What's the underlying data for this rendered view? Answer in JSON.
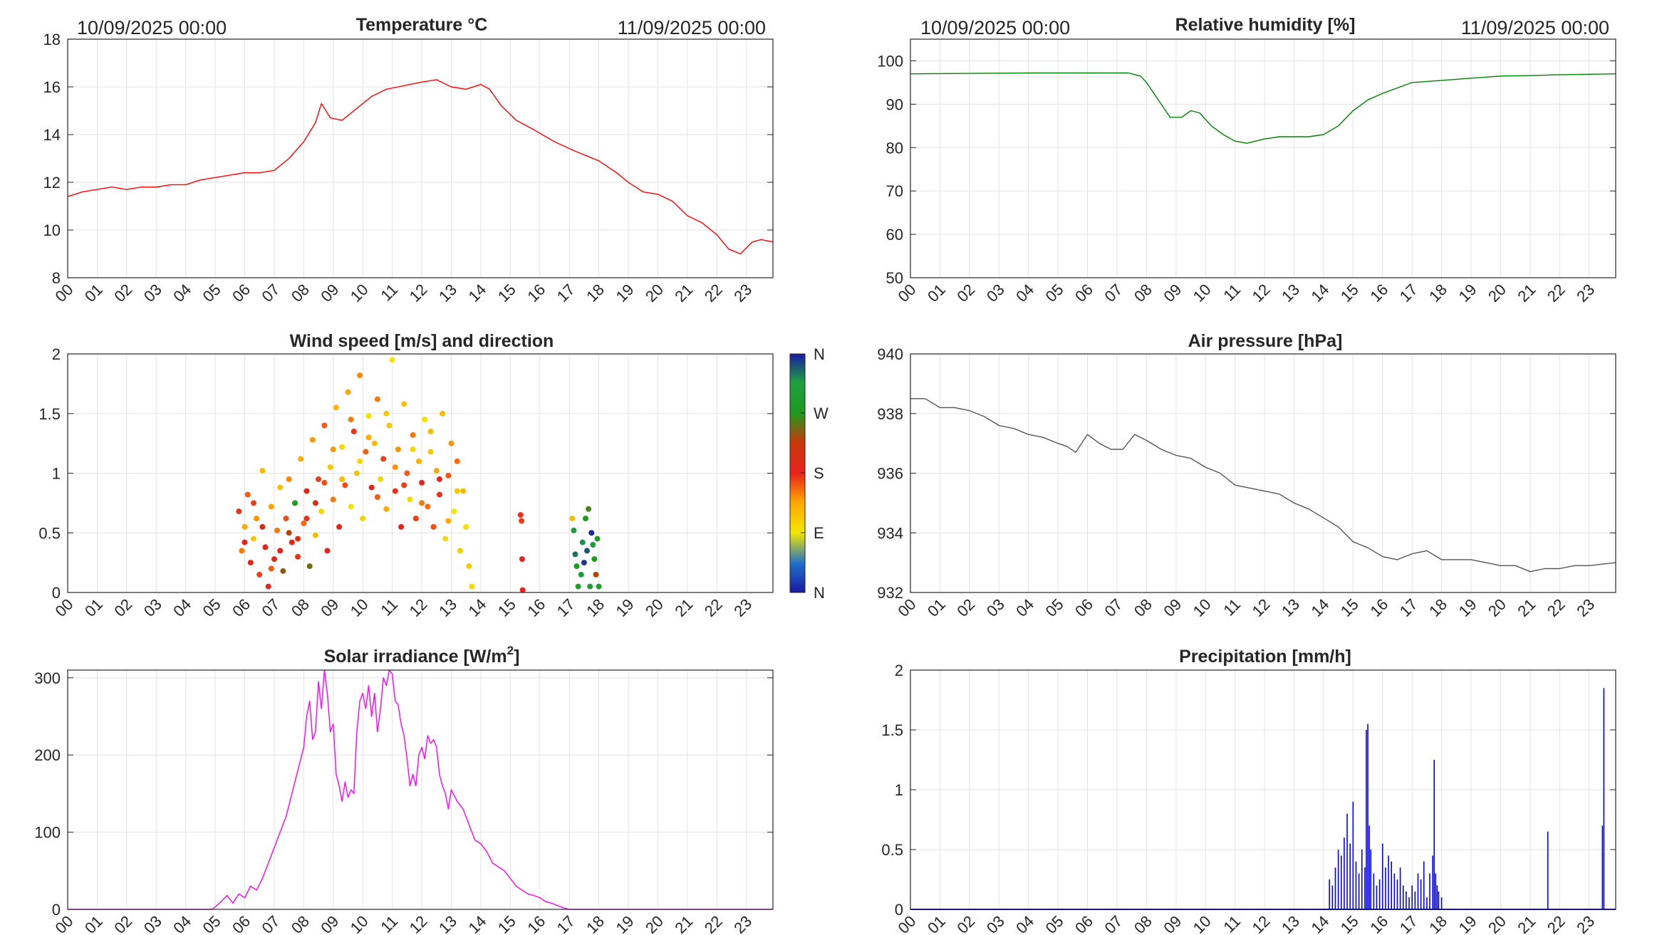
{
  "hour_labels": [
    "00",
    "01",
    "02",
    "03",
    "04",
    "05",
    "06",
    "07",
    "08",
    "09",
    "10",
    "11",
    "12",
    "13",
    "14",
    "15",
    "16",
    "17",
    "18",
    "19",
    "20",
    "21",
    "22",
    "23"
  ],
  "colorbar_labels": [
    "N",
    "W",
    "S",
    "E",
    "N"
  ],
  "chart_data": [
    {
      "id": "temperature",
      "type": "line",
      "title": "Temperature °C",
      "date_start": "10/09/2025 00:00",
      "date_end": "11/09/2025 00:00",
      "color": "#ff0000",
      "ylim": [
        8,
        18
      ],
      "yticks": [
        "8",
        "10",
        "12",
        "14",
        "16",
        "18"
      ],
      "x_hours": [
        0,
        0.5,
        1,
        1.5,
        2,
        2.5,
        3,
        3.5,
        4,
        4.5,
        5,
        5.5,
        6,
        6.5,
        7,
        7.5,
        8,
        8.4,
        8.6,
        8.9,
        9.3,
        9.8,
        10.3,
        10.8,
        11.2,
        11.6,
        12.0,
        12.5,
        13.0,
        13.5,
        14.0,
        14.3,
        14.7,
        15.2,
        15.8,
        16.5,
        17.2,
        18.0,
        18.6,
        19.0,
        19.5,
        20.0,
        20.5,
        21.0,
        21.5,
        22.0,
        22.4,
        22.8,
        23.2,
        23.5,
        23.9
      ],
      "values": [
        11.4,
        11.6,
        11.7,
        11.8,
        11.7,
        11.8,
        11.8,
        11.9,
        11.9,
        12.1,
        12.2,
        12.3,
        12.4,
        12.4,
        12.5,
        13.0,
        13.7,
        14.5,
        15.3,
        14.7,
        14.6,
        15.1,
        15.6,
        15.9,
        16.0,
        16.1,
        16.2,
        16.3,
        16.0,
        15.9,
        16.1,
        15.9,
        15.2,
        14.6,
        14.2,
        13.7,
        13.3,
        12.9,
        12.4,
        12.0,
        11.6,
        11.5,
        11.2,
        10.6,
        10.3,
        9.8,
        9.2,
        9.0,
        9.5,
        9.6,
        9.5
      ]
    },
    {
      "id": "humidity",
      "type": "line",
      "title": "Relative humidity [%]",
      "date_start": "10/09/2025 00:00",
      "date_end": "11/09/2025 00:00",
      "color": "#008000",
      "ylim": [
        50,
        105
      ],
      "yticks": [
        "50",
        "60",
        "70",
        "80",
        "90",
        "100"
      ],
      "x_hours": [
        0,
        2,
        4,
        6,
        7.4,
        7.8,
        8.0,
        8.3,
        8.5,
        8.8,
        9.2,
        9.5,
        9.8,
        10.2,
        10.6,
        11.0,
        11.4,
        12.0,
        12.5,
        13.0,
        13.5,
        14.0,
        14.5,
        15.0,
        15.5,
        16.0,
        17.0,
        18.0,
        19.0,
        20.0,
        21.0,
        22.0,
        23.0,
        23.9
      ],
      "values": [
        97,
        97.1,
        97.2,
        97.2,
        97.2,
        96.5,
        95,
        92,
        90,
        87,
        87,
        88.5,
        88,
        85,
        83,
        81.5,
        81,
        82,
        82.5,
        82.5,
        82.5,
        83,
        85,
        88.5,
        91,
        92.5,
        95,
        95.5,
        96,
        96.5,
        96.6,
        96.8,
        96.9,
        97
      ]
    },
    {
      "id": "wind",
      "type": "scatter",
      "title": "Wind speed [m/s] and direction",
      "ylim": [
        0,
        2
      ],
      "yticks": [
        "0",
        "0.5",
        "1",
        "1.5",
        "2"
      ],
      "colorbar_scale": "direction (N, E, S, W, N)",
      "points": [
        [
          5.8,
          0.68,
          175
        ],
        [
          5.9,
          0.35,
          150
        ],
        [
          6.0,
          0.55,
          130
        ],
        [
          6.1,
          0.82,
          160
        ],
        [
          6.2,
          0.25,
          185
        ],
        [
          6.3,
          0.45,
          110
        ],
        [
          6.4,
          0.62,
          140
        ],
        [
          6.5,
          0.15,
          170
        ],
        [
          6.6,
          1.02,
          120
        ],
        [
          6.7,
          0.38,
          190
        ],
        [
          6.8,
          0.05,
          180
        ],
        [
          6.9,
          0.72,
          135
        ],
        [
          7.0,
          0.28,
          200
        ],
        [
          7.1,
          0.52,
          150
        ],
        [
          7.2,
          0.88,
          115
        ],
        [
          7.3,
          0.18,
          240
        ],
        [
          7.4,
          0.62,
          165
        ],
        [
          7.5,
          0.95,
          145
        ],
        [
          7.6,
          0.42,
          195
        ],
        [
          7.7,
          0.75,
          270
        ],
        [
          7.8,
          0.3,
          175
        ],
        [
          7.9,
          1.12,
          130
        ],
        [
          8.0,
          0.58,
          155
        ],
        [
          8.1,
          0.85,
          185
        ],
        [
          8.2,
          0.22,
          250
        ],
        [
          8.3,
          1.28,
          140
        ],
        [
          8.4,
          0.48,
          120
        ],
        [
          8.5,
          0.95,
          170
        ],
        [
          8.6,
          0.68,
          100
        ],
        [
          8.7,
          1.4,
          160
        ],
        [
          8.8,
          0.35,
          180
        ],
        [
          8.9,
          1.05,
          110
        ],
        [
          9.0,
          0.78,
          150
        ],
        [
          9.1,
          1.55,
          125
        ],
        [
          9.2,
          0.55,
          190
        ],
        [
          9.3,
          1.22,
          100
        ],
        [
          9.4,
          0.9,
          165
        ],
        [
          9.5,
          1.68,
          135
        ],
        [
          9.6,
          0.72,
          90
        ],
        [
          9.7,
          1.35,
          175
        ],
        [
          9.8,
          1.0,
          115
        ],
        [
          9.9,
          1.82,
          145
        ],
        [
          10.0,
          0.62,
          105
        ],
        [
          10.1,
          1.18,
          160
        ],
        [
          10.2,
          1.48,
          95
        ],
        [
          10.3,
          0.88,
          180
        ],
        [
          10.4,
          1.25,
          120
        ],
        [
          10.5,
          1.62,
          150
        ],
        [
          10.6,
          0.95,
          100
        ],
        [
          10.7,
          1.12,
          170
        ],
        [
          10.8,
          0.7,
          130
        ],
        [
          10.9,
          1.4,
          110
        ],
        [
          11.0,
          1.95,
          90
        ],
        [
          11.1,
          0.85,
          175
        ],
        [
          11.2,
          1.2,
          140
        ],
        [
          11.3,
          0.55,
          185
        ],
        [
          11.4,
          1.58,
          115
        ],
        [
          11.5,
          1.0,
          160
        ],
        [
          11.6,
          0.78,
          100
        ],
        [
          11.7,
          1.32,
          150
        ],
        [
          11.8,
          0.62,
          170
        ],
        [
          11.9,
          1.1,
          125
        ],
        [
          12.0,
          0.92,
          180
        ],
        [
          12.1,
          1.45,
          95
        ],
        [
          12.2,
          0.72,
          155
        ],
        [
          12.3,
          1.18,
          110
        ],
        [
          12.4,
          0.55,
          165
        ],
        [
          12.5,
          1.02,
          135
        ],
        [
          12.6,
          0.82,
          175
        ],
        [
          12.7,
          1.5,
          120
        ],
        [
          12.8,
          0.45,
          100
        ],
        [
          12.9,
          0.98,
          160
        ],
        [
          13.0,
          1.25,
          140
        ],
        [
          13.1,
          0.68,
          90
        ],
        [
          13.2,
          1.1,
          155
        ],
        [
          13.3,
          0.35,
          105
        ],
        [
          13.4,
          0.85,
          120
        ],
        [
          13.5,
          0.55,
          95
        ],
        [
          13.6,
          0.22,
          110
        ],
        [
          13.7,
          0.05,
          100
        ],
        [
          6.0,
          0.42,
          180
        ],
        [
          6.3,
          0.75,
          170
        ],
        [
          6.6,
          0.55,
          200
        ],
        [
          6.9,
          0.2,
          160
        ],
        [
          7.2,
          0.35,
          185
        ],
        [
          7.5,
          0.5,
          230
        ],
        [
          7.8,
          0.45,
          200
        ],
        [
          8.1,
          0.62,
          175
        ],
        [
          8.4,
          0.75,
          210
        ],
        [
          8.7,
          0.92,
          165
        ],
        [
          9.0,
          1.2,
          140
        ],
        [
          9.3,
          0.95,
          120
        ],
        [
          9.6,
          1.45,
          150
        ],
        [
          9.9,
          1.1,
          100
        ],
        [
          10.2,
          1.3,
          130
        ],
        [
          10.5,
          0.8,
          160
        ],
        [
          10.8,
          1.5,
          110
        ],
        [
          11.1,
          1.05,
          140
        ],
        [
          11.4,
          0.9,
          170
        ],
        [
          11.7,
          1.2,
          100
        ],
        [
          12.0,
          0.75,
          150
        ],
        [
          12.3,
          1.35,
          120
        ],
        [
          12.6,
          0.95,
          180
        ],
        [
          12.9,
          0.6,
          130
        ],
        [
          13.2,
          0.85,
          110
        ],
        [
          15.35,
          0.65,
          175
        ],
        [
          15.38,
          0.6,
          170
        ],
        [
          15.4,
          0.28,
          185
        ],
        [
          15.42,
          0.02,
          180
        ],
        [
          17.1,
          0.62,
          120
        ],
        [
          17.15,
          0.52,
          310
        ],
        [
          17.2,
          0.32,
          330
        ],
        [
          17.25,
          0.22,
          280
        ],
        [
          17.3,
          0.05,
          290
        ],
        [
          17.4,
          0.15,
          300
        ],
        [
          17.45,
          0.42,
          320
        ],
        [
          17.5,
          0.25,
          350
        ],
        [
          17.55,
          0.62,
          270
        ],
        [
          17.6,
          0.35,
          340
        ],
        [
          17.65,
          0.7,
          260
        ],
        [
          17.7,
          0.05,
          300
        ],
        [
          17.75,
          0.5,
          355
        ],
        [
          17.8,
          0.4,
          310
        ],
        [
          17.85,
          0.28,
          270
        ],
        [
          17.9,
          0.15,
          230
        ],
        [
          17.95,
          0.45,
          280
        ],
        [
          18.0,
          0.05,
          290
        ]
      ]
    },
    {
      "id": "pressure",
      "type": "line",
      "title": "Air pressure [hPa]",
      "color": "#555555",
      "ylim": [
        932,
        940
      ],
      "yticks": [
        "932",
        "934",
        "936",
        "938",
        "940"
      ],
      "x_hours": [
        0,
        0.5,
        1.0,
        1.5,
        2.0,
        2.5,
        3.0,
        3.5,
        4.0,
        4.5,
        5.0,
        5.3,
        5.6,
        6.0,
        6.4,
        6.8,
        7.2,
        7.6,
        8.0,
        8.5,
        9.0,
        9.5,
        10.0,
        10.5,
        11.0,
        11.5,
        12.0,
        12.5,
        13.0,
        13.5,
        14.0,
        14.5,
        15.0,
        15.5,
        16.0,
        16.5,
        17.0,
        17.5,
        18.0,
        18.5,
        19.0,
        19.5,
        20.0,
        20.5,
        21.0,
        21.5,
        22.0,
        22.5,
        23.0,
        23.9
      ],
      "values": [
        938.5,
        938.5,
        938.2,
        938.2,
        938.1,
        937.9,
        937.6,
        937.5,
        937.3,
        937.2,
        937.0,
        936.9,
        936.7,
        937.3,
        937.0,
        936.8,
        936.8,
        937.3,
        937.1,
        936.8,
        936.6,
        936.5,
        936.2,
        936.0,
        935.6,
        935.5,
        935.4,
        935.3,
        935.0,
        934.8,
        934.5,
        934.2,
        933.7,
        933.5,
        933.2,
        933.1,
        933.3,
        933.4,
        933.1,
        933.1,
        933.1,
        933.0,
        932.9,
        932.9,
        932.7,
        932.8,
        932.8,
        932.9,
        932.9,
        933.0
      ]
    },
    {
      "id": "solar",
      "type": "line",
      "title": "Solar irradiance [W/m",
      "title_sup": "2",
      "title_end": "]",
      "color": "#ff00ff",
      "ylim": [
        0,
        310
      ],
      "yticks": [
        "0",
        "100",
        "200",
        "300"
      ],
      "x_hours": [
        0,
        4.9,
        5.2,
        5.4,
        5.6,
        5.8,
        6.0,
        6.2,
        6.4,
        6.6,
        6.8,
        7.0,
        7.2,
        7.4,
        7.6,
        7.8,
        8.0,
        8.1,
        8.2,
        8.3,
        8.4,
        8.5,
        8.6,
        8.7,
        8.8,
        8.9,
        9.0,
        9.1,
        9.2,
        9.3,
        9.4,
        9.5,
        9.6,
        9.7,
        9.8,
        9.9,
        10.0,
        10.1,
        10.2,
        10.3,
        10.4,
        10.5,
        10.6,
        10.7,
        10.8,
        10.9,
        11.0,
        11.1,
        11.2,
        11.3,
        11.4,
        11.5,
        11.6,
        11.7,
        11.8,
        11.9,
        12.0,
        12.1,
        12.2,
        12.3,
        12.4,
        12.5,
        12.6,
        12.7,
        12.8,
        12.9,
        13.0,
        13.2,
        13.4,
        13.6,
        13.8,
        14.0,
        14.2,
        14.4,
        14.6,
        14.8,
        15.0,
        15.2,
        15.4,
        15.6,
        15.8,
        16.0,
        16.2,
        16.4,
        16.6,
        16.8,
        17.0,
        17.5,
        23.9
      ],
      "values": [
        0,
        0,
        10,
        18,
        8,
        20,
        15,
        30,
        25,
        40,
        60,
        80,
        100,
        120,
        150,
        180,
        210,
        250,
        270,
        220,
        230,
        295,
        260,
        310,
        280,
        230,
        240,
        175,
        160,
        140,
        165,
        145,
        155,
        150,
        230,
        270,
        280,
        260,
        290,
        250,
        280,
        230,
        260,
        300,
        290,
        310,
        305,
        270,
        265,
        240,
        225,
        195,
        160,
        175,
        160,
        200,
        210,
        195,
        225,
        215,
        220,
        210,
        175,
        160,
        150,
        130,
        155,
        140,
        130,
        110,
        90,
        85,
        75,
        60,
        55,
        50,
        40,
        30,
        25,
        20,
        18,
        15,
        10,
        8,
        5,
        2,
        0,
        0,
        0
      ]
    },
    {
      "id": "precipitation",
      "type": "bar",
      "title": "Precipitation [mm/h]",
      "color": "#0000ff",
      "ylim": [
        0,
        2
      ],
      "yticks": [
        "0",
        "0.5",
        "1",
        "1.5",
        "2"
      ],
      "x_hours": [
        14.2,
        14.3,
        14.4,
        14.5,
        14.6,
        14.7,
        14.8,
        14.9,
        15.0,
        15.1,
        15.2,
        15.3,
        15.4,
        15.45,
        15.5,
        15.55,
        15.6,
        15.7,
        15.8,
        15.9,
        16.0,
        16.1,
        16.2,
        16.3,
        16.4,
        16.5,
        16.6,
        16.7,
        16.8,
        16.9,
        17.0,
        17.1,
        17.2,
        17.3,
        17.4,
        17.5,
        17.6,
        17.7,
        17.75,
        17.8,
        17.85,
        17.9,
        18.0,
        21.6,
        23.45,
        23.5
      ],
      "values": [
        0.25,
        0.2,
        0.35,
        0.5,
        0.45,
        0.6,
        0.8,
        0.55,
        0.9,
        0.4,
        0.3,
        0.5,
        0.35,
        1.5,
        1.55,
        0.7,
        0.5,
        0.3,
        0.2,
        0.25,
        0.55,
        0.35,
        0.45,
        0.4,
        0.3,
        0.25,
        0.35,
        0.2,
        0.15,
        0.1,
        0.2,
        0.15,
        0.3,
        0.25,
        0.4,
        0.1,
        0.3,
        0.45,
        1.25,
        0.3,
        0.2,
        0.15,
        0.1,
        0.65,
        0.7,
        1.85
      ]
    }
  ]
}
